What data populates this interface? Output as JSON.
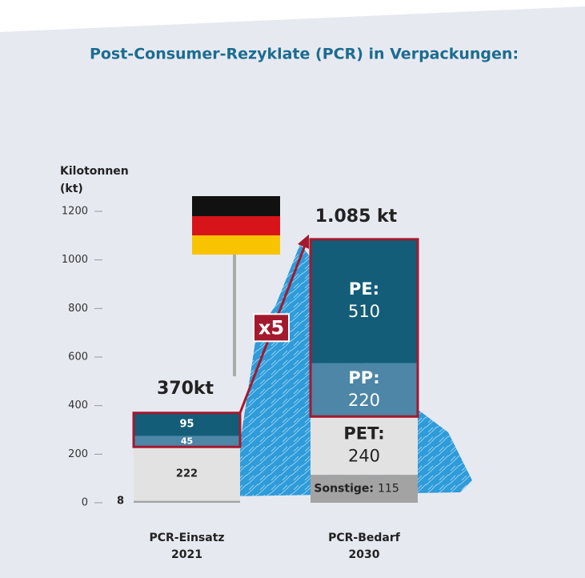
{
  "chart_data": {
    "type": "stacked-bar",
    "title": "Post-Consumer-Rezyklate (PCR) in Verpackungen:",
    "y_label": [
      "Kilotonnen",
      "(kt)"
    ],
    "categories": [
      [
        "PCR-Einsatz",
        "2021"
      ],
      [
        "PCR-Bedarf",
        "2030"
      ]
    ],
    "series": [
      {
        "name": "Sonstige:",
        "color": "#a3a3a3",
        "values": [
          8,
          115
        ]
      },
      {
        "name": "PET:",
        "color": "#e2e2e2",
        "values": [
          222,
          240
        ]
      },
      {
        "name": "PP:",
        "color": "#4d86a6",
        "values": [
          45,
          220
        ]
      },
      {
        "name": "PE:",
        "color": "#135d78",
        "values": [
          95,
          510
        ]
      }
    ],
    "totals": {
      "values": [
        370,
        1085
      ],
      "value_labels": [
        "370kt",
        "1.085 kt"
      ]
    },
    "annotation": "x5",
    "ylim": [
      0,
      1200
    ],
    "yticks": [
      0,
      200,
      400,
      600,
      800,
      1000,
      1200
    ]
  }
}
